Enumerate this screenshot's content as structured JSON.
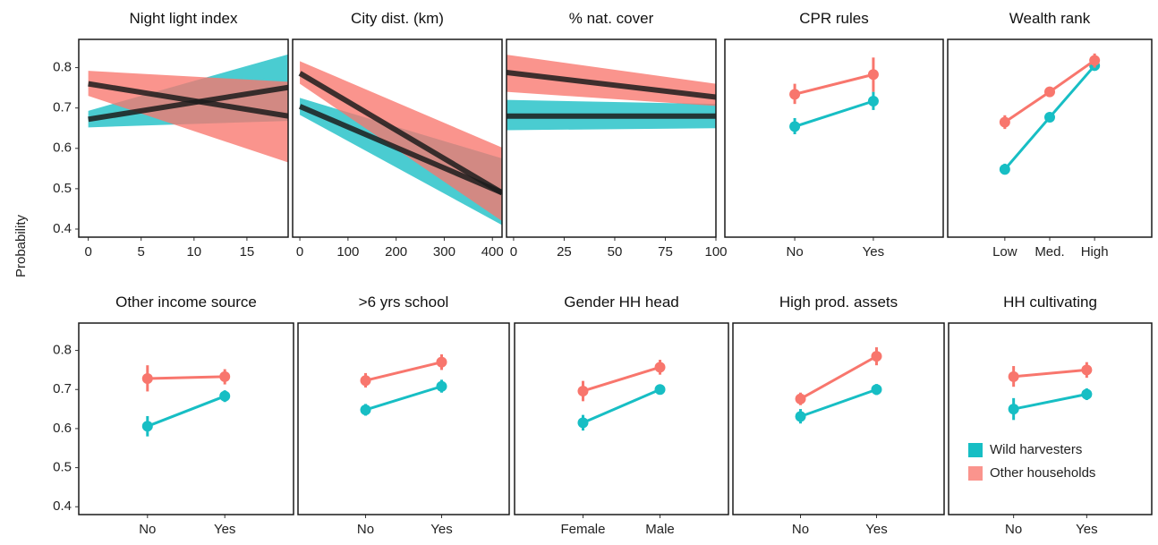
{
  "figure": {
    "ylabel": "Probability",
    "legend": {
      "placement": "inside-bottom-right",
      "entries": [
        {
          "name": "Wild harvesters",
          "color": "#17BEC4"
        },
        {
          "name": "Other households",
          "color": "#F8766D"
        }
      ]
    }
  },
  "chart_data": [
    {
      "type": "line",
      "title": "Night light index",
      "xlim": [
        -0.9,
        18.9
      ],
      "ylim": [
        0.38,
        0.87
      ],
      "xticks": [
        0,
        5,
        10,
        15
      ],
      "yticks": [
        0.4,
        0.5,
        0.6,
        0.7,
        0.8
      ],
      "series": [
        {
          "name": "Wild harvesters",
          "x": [
            0,
            18.9
          ],
          "y": [
            0.672,
            0.751
          ],
          "lower": [
            0.652,
            0.668
          ],
          "upper": [
            0.693,
            0.833
          ]
        },
        {
          "name": "Other households",
          "x": [
            0,
            18.9
          ],
          "y": [
            0.76,
            0.68
          ],
          "lower": [
            0.73,
            0.565
          ],
          "upper": [
            0.792,
            0.765
          ]
        }
      ]
    },
    {
      "type": "line",
      "title": "City dist. (km)",
      "xlim": [
        -15,
        420
      ],
      "ylim": [
        0.38,
        0.87
      ],
      "xticks": [
        0,
        100,
        200,
        300,
        400
      ],
      "series": [
        {
          "name": "Wild harvesters",
          "x": [
            0,
            420
          ],
          "y": [
            0.704,
            0.49
          ],
          "lower": [
            0.683,
            0.41
          ],
          "upper": [
            0.725,
            0.575
          ]
        },
        {
          "name": "Other households",
          "x": [
            0,
            420
          ],
          "y": [
            0.786,
            0.49
          ],
          "lower": [
            0.76,
            0.42
          ],
          "upper": [
            0.816,
            0.602
          ]
        }
      ]
    },
    {
      "type": "line",
      "title": "% nat. cover",
      "xlim": [
        -3.5,
        100
      ],
      "ylim": [
        0.38,
        0.87
      ],
      "xticks": [
        0,
        25,
        50,
        75,
        100
      ],
      "series": [
        {
          "name": "Wild harvesters",
          "x": [
            -3.5,
            100
          ],
          "y": [
            0.68,
            0.68
          ],
          "lower": [
            0.645,
            0.65
          ],
          "upper": [
            0.72,
            0.71
          ]
        },
        {
          "name": "Other households",
          "x": [
            -3.5,
            100
          ],
          "y": [
            0.788,
            0.727
          ],
          "lower": [
            0.74,
            0.705
          ],
          "upper": [
            0.832,
            0.76
          ]
        }
      ]
    },
    {
      "type": "scatter",
      "title": "CPR rules",
      "categories": [
        "No",
        "Yes"
      ],
      "ylim": [
        0.38,
        0.87
      ],
      "series": [
        {
          "name": "Wild harvesters",
          "values": [
            0.654,
            0.717
          ],
          "lower": [
            0.635,
            0.695
          ],
          "upper": [
            0.675,
            0.74
          ]
        },
        {
          "name": "Other households",
          "values": [
            0.734,
            0.783
          ],
          "lower": [
            0.71,
            0.74
          ],
          "upper": [
            0.76,
            0.825
          ]
        }
      ]
    },
    {
      "type": "scatter",
      "title": "Wealth rank",
      "categories": [
        "Low",
        "Med.",
        "High"
      ],
      "ylim": [
        0.38,
        0.87
      ],
      "series": [
        {
          "name": "Wild harvesters",
          "values": [
            0.548,
            0.677,
            0.805
          ],
          "lower": [
            0.535,
            0.67,
            0.795
          ],
          "upper": [
            0.562,
            0.685,
            0.815
          ]
        },
        {
          "name": "Other households",
          "values": [
            0.665,
            0.74,
            0.818
          ],
          "lower": [
            0.648,
            0.732,
            0.8
          ],
          "upper": [
            0.682,
            0.748,
            0.835
          ]
        }
      ]
    },
    {
      "type": "scatter",
      "title": "Other income source",
      "categories": [
        "No",
        "Yes"
      ],
      "ylim": [
        0.38,
        0.87
      ],
      "series": [
        {
          "name": "Wild harvesters",
          "values": [
            0.606,
            0.683
          ],
          "lower": [
            0.58,
            0.668
          ],
          "upper": [
            0.632,
            0.698
          ]
        },
        {
          "name": "Other households",
          "values": [
            0.728,
            0.733
          ],
          "lower": [
            0.695,
            0.713
          ],
          "upper": [
            0.762,
            0.752
          ]
        }
      ]
    },
    {
      "type": "scatter",
      "title": ">6 yrs school",
      "categories": [
        "No",
        "Yes"
      ],
      "ylim": [
        0.38,
        0.87
      ],
      "series": [
        {
          "name": "Wild harvesters",
          "values": [
            0.648,
            0.708
          ],
          "lower": [
            0.633,
            0.692
          ],
          "upper": [
            0.663,
            0.725
          ]
        },
        {
          "name": "Other households",
          "values": [
            0.723,
            0.77
          ],
          "lower": [
            0.705,
            0.75
          ],
          "upper": [
            0.742,
            0.79
          ]
        }
      ]
    },
    {
      "type": "scatter",
      "title": "Gender HH head",
      "categories": [
        "Female",
        "Male"
      ],
      "ylim": [
        0.38,
        0.87
      ],
      "series": [
        {
          "name": "Wild harvesters",
          "values": [
            0.615,
            0.7
          ],
          "lower": [
            0.595,
            0.688
          ],
          "upper": [
            0.635,
            0.712
          ]
        },
        {
          "name": "Other households",
          "values": [
            0.696,
            0.757
          ],
          "lower": [
            0.67,
            0.738
          ],
          "upper": [
            0.722,
            0.776
          ]
        }
      ]
    },
    {
      "type": "scatter",
      "title": "High prod. assets",
      "categories": [
        "No",
        "Yes"
      ],
      "ylim": [
        0.38,
        0.87
      ],
      "series": [
        {
          "name": "Wild harvesters",
          "values": [
            0.631,
            0.7
          ],
          "lower": [
            0.613,
            0.686
          ],
          "upper": [
            0.65,
            0.714
          ]
        },
        {
          "name": "Other households",
          "values": [
            0.676,
            0.785
          ],
          "lower": [
            0.66,
            0.762
          ],
          "upper": [
            0.692,
            0.808
          ]
        }
      ]
    },
    {
      "type": "scatter",
      "title": "HH cultivating",
      "categories": [
        "No",
        "Yes"
      ],
      "ylim": [
        0.38,
        0.87
      ],
      "series": [
        {
          "name": "Wild harvesters",
          "values": [
            0.65,
            0.688
          ],
          "lower": [
            0.622,
            0.673
          ],
          "upper": [
            0.678,
            0.703
          ]
        },
        {
          "name": "Other households",
          "values": [
            0.733,
            0.75
          ],
          "lower": [
            0.707,
            0.73
          ],
          "upper": [
            0.76,
            0.77
          ]
        }
      ]
    }
  ]
}
